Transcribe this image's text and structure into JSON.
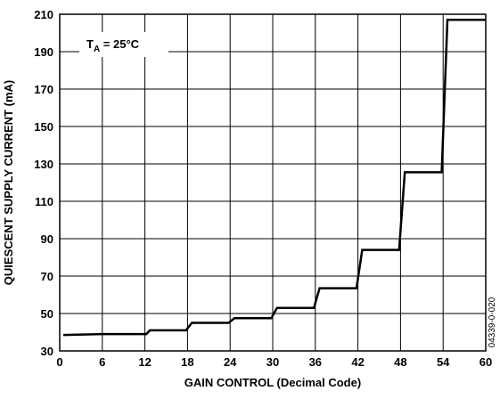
{
  "chart_data": {
    "type": "line",
    "title": "",
    "xlabel": "GAIN CONTROL (Decimal Code)",
    "ylabel": "QUIESCENT SUPPLY CURRENT (mA)",
    "xlim": [
      0,
      60
    ],
    "ylim": [
      30,
      210
    ],
    "xticks": [
      0,
      6,
      12,
      18,
      24,
      30,
      36,
      42,
      48,
      54,
      60
    ],
    "yticks": [
      30,
      50,
      70,
      90,
      110,
      130,
      150,
      170,
      190,
      210
    ],
    "grid": true,
    "legend": "none",
    "annotation": {
      "main": "T",
      "sub": "A",
      "rest": " = 25°C"
    },
    "figure_id": "04339-0-020",
    "series": [
      {
        "color": "#000000",
        "x": [
          0.5,
          6,
          12.2,
          12.7,
          17.8,
          18.6,
          23.8,
          24.6,
          29.8,
          30.6,
          35.8,
          36.6,
          41.8,
          42.6,
          47.8,
          48.6,
          53.8,
          54.6,
          60
        ],
        "y": [
          38.5,
          39,
          39,
          41,
          41,
          45,
          45,
          47.5,
          47.5,
          53,
          53,
          63.5,
          63.5,
          84,
          84,
          125.5,
          125.5,
          207,
          207
        ]
      }
    ]
  }
}
